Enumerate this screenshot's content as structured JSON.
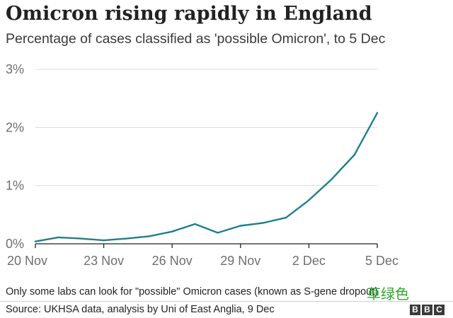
{
  "header": {
    "title": "Omicron rising rapidly in England",
    "subtitle": "Percentage of cases classified as 'possible Omicron', to 5 Dec"
  },
  "footer": {
    "note": "Only some labs can look for \"possible\" Omicron cases (known as S-gene dropout)",
    "source": "Source: UKHSA data, analysis by Uni of East Anglia, 9 Dec",
    "watermark": "草绿色",
    "logo_letters": [
      "B",
      "B",
      "C"
    ]
  },
  "colors": {
    "line": "#1e7f8e",
    "grid": "#dcdcdc",
    "axis": "#222222",
    "tick_text": "#6f6f6f"
  },
  "chart_data": {
    "type": "line",
    "title": "Omicron rising rapidly in England",
    "subtitle": "Percentage of cases classified as 'possible Omicron', to 5 Dec",
    "xlabel": "",
    "ylabel": "",
    "x": [
      "20 Nov",
      "21 Nov",
      "22 Nov",
      "23 Nov",
      "24 Nov",
      "25 Nov",
      "26 Nov",
      "27 Nov",
      "28 Nov",
      "29 Nov",
      "30 Nov",
      "1 Dec",
      "2 Dec",
      "3 Dec",
      "4 Dec",
      "5 Dec"
    ],
    "x_ticks": [
      "20 Nov",
      "23 Nov",
      "26 Nov",
      "29 Nov",
      "2 Dec",
      "5 Dec"
    ],
    "y_ticks": [
      "0%",
      "1%",
      "2%",
      "3%"
    ],
    "ylim": [
      0,
      3
    ],
    "grid": true,
    "series": [
      {
        "values": [
          0.04,
          0.11,
          0.09,
          0.06,
          0.09,
          0.13,
          0.21,
          0.34,
          0.19,
          0.31,
          0.36,
          0.45,
          0.75,
          1.11,
          1.53,
          2.25
        ]
      }
    ]
  }
}
